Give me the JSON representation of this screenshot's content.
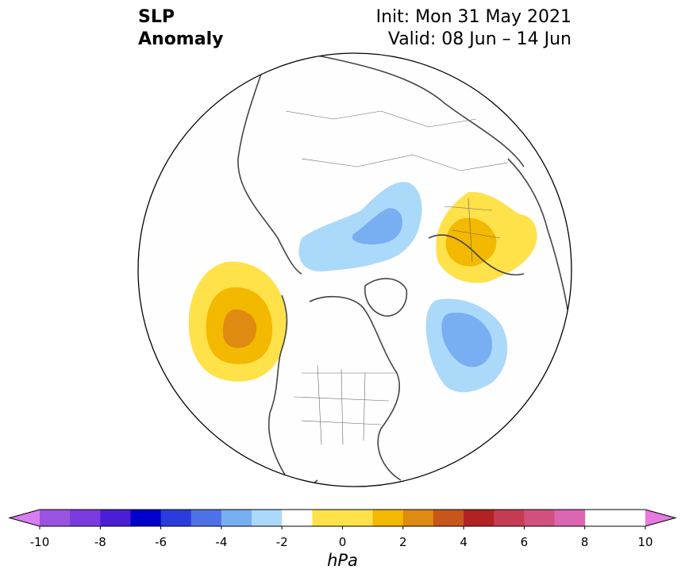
{
  "title": {
    "left_line1": "SLP",
    "left_line2": "Anomaly",
    "right_line1": "Init: Mon 31 May 2021",
    "right_line2": "Valid: 08 Jun – 14 Jun"
  },
  "colorbar": {
    "label": "hPa",
    "ticks": [
      "-10",
      "-8",
      "-6",
      "-4",
      "-2",
      "0",
      "2",
      "4",
      "6",
      "8",
      "10"
    ],
    "levels": [
      -10,
      -9,
      -8,
      -7,
      -6,
      -5,
      -4,
      -3,
      -2,
      -1,
      1,
      2,
      3,
      4,
      5,
      6,
      7,
      8,
      9,
      10
    ],
    "colors": [
      "#9a52e0",
      "#7a3ce0",
      "#4a1ed4",
      "#0000cc",
      "#2a3ddc",
      "#4f71e8",
      "#78aef2",
      "#abd9fa",
      "#ffffff",
      "#ffe14a",
      "#f3b800",
      "#df8a10",
      "#c6561a",
      "#b22222",
      "#c73b52",
      "#d1507e",
      "#db66b2"
    ],
    "extend_low_color": "#d77ef0",
    "extend_high_color": "#e67ae0"
  },
  "anomalies": [
    {
      "name": "north-pacific-high",
      "peak_hpa": 4
    },
    {
      "name": "europe-high",
      "peak_hpa": 3
    },
    {
      "name": "siberia-low",
      "peak_hpa": -3
    },
    {
      "name": "north-atlantic-low",
      "peak_hpa": -3
    }
  ]
}
